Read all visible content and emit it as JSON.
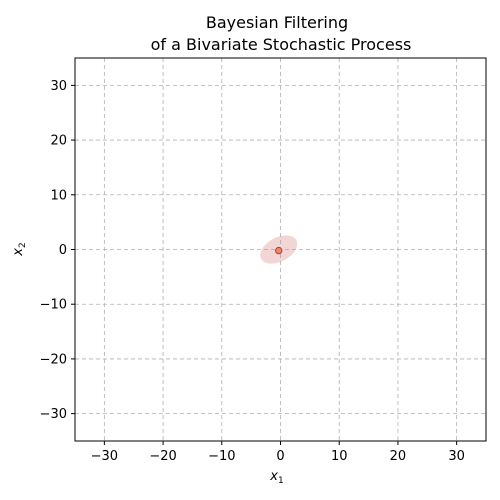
{
  "chart_data": {
    "type": "scatter",
    "title": [
      "Bayesian Filtering",
      "of a Bivariate Stochastic Process"
    ],
    "xlabel": {
      "base": "x",
      "sub": "1"
    },
    "ylabel": {
      "base": "x",
      "sub": "2"
    },
    "xlim": [
      -35,
      35
    ],
    "ylim": [
      -35,
      35
    ],
    "xticks": [
      -30,
      -20,
      -10,
      0,
      10,
      20,
      30
    ],
    "yticks": [
      -30,
      -20,
      -10,
      0,
      10,
      20,
      30
    ],
    "xtick_labels": [
      "−30",
      "−20",
      "−10",
      "0",
      "10",
      "20",
      "30"
    ],
    "ytick_labels": [
      "−30",
      "−20",
      "−10",
      "0",
      "10",
      "20",
      "30"
    ],
    "grid": true,
    "points": [
      {
        "x": -0.3,
        "y": -0.2
      }
    ],
    "ellipses": [
      {
        "cx": -0.3,
        "cy": 0.0,
        "rx": 3.4,
        "ry": 2.2,
        "angle_deg": 28
      }
    ],
    "colors": {
      "point_fill": "#e58a6b",
      "point_edge": "#c0392b",
      "ellipse_fill": "#d98a87",
      "grid": "#b0b0b0",
      "axes": "#000000"
    }
  }
}
